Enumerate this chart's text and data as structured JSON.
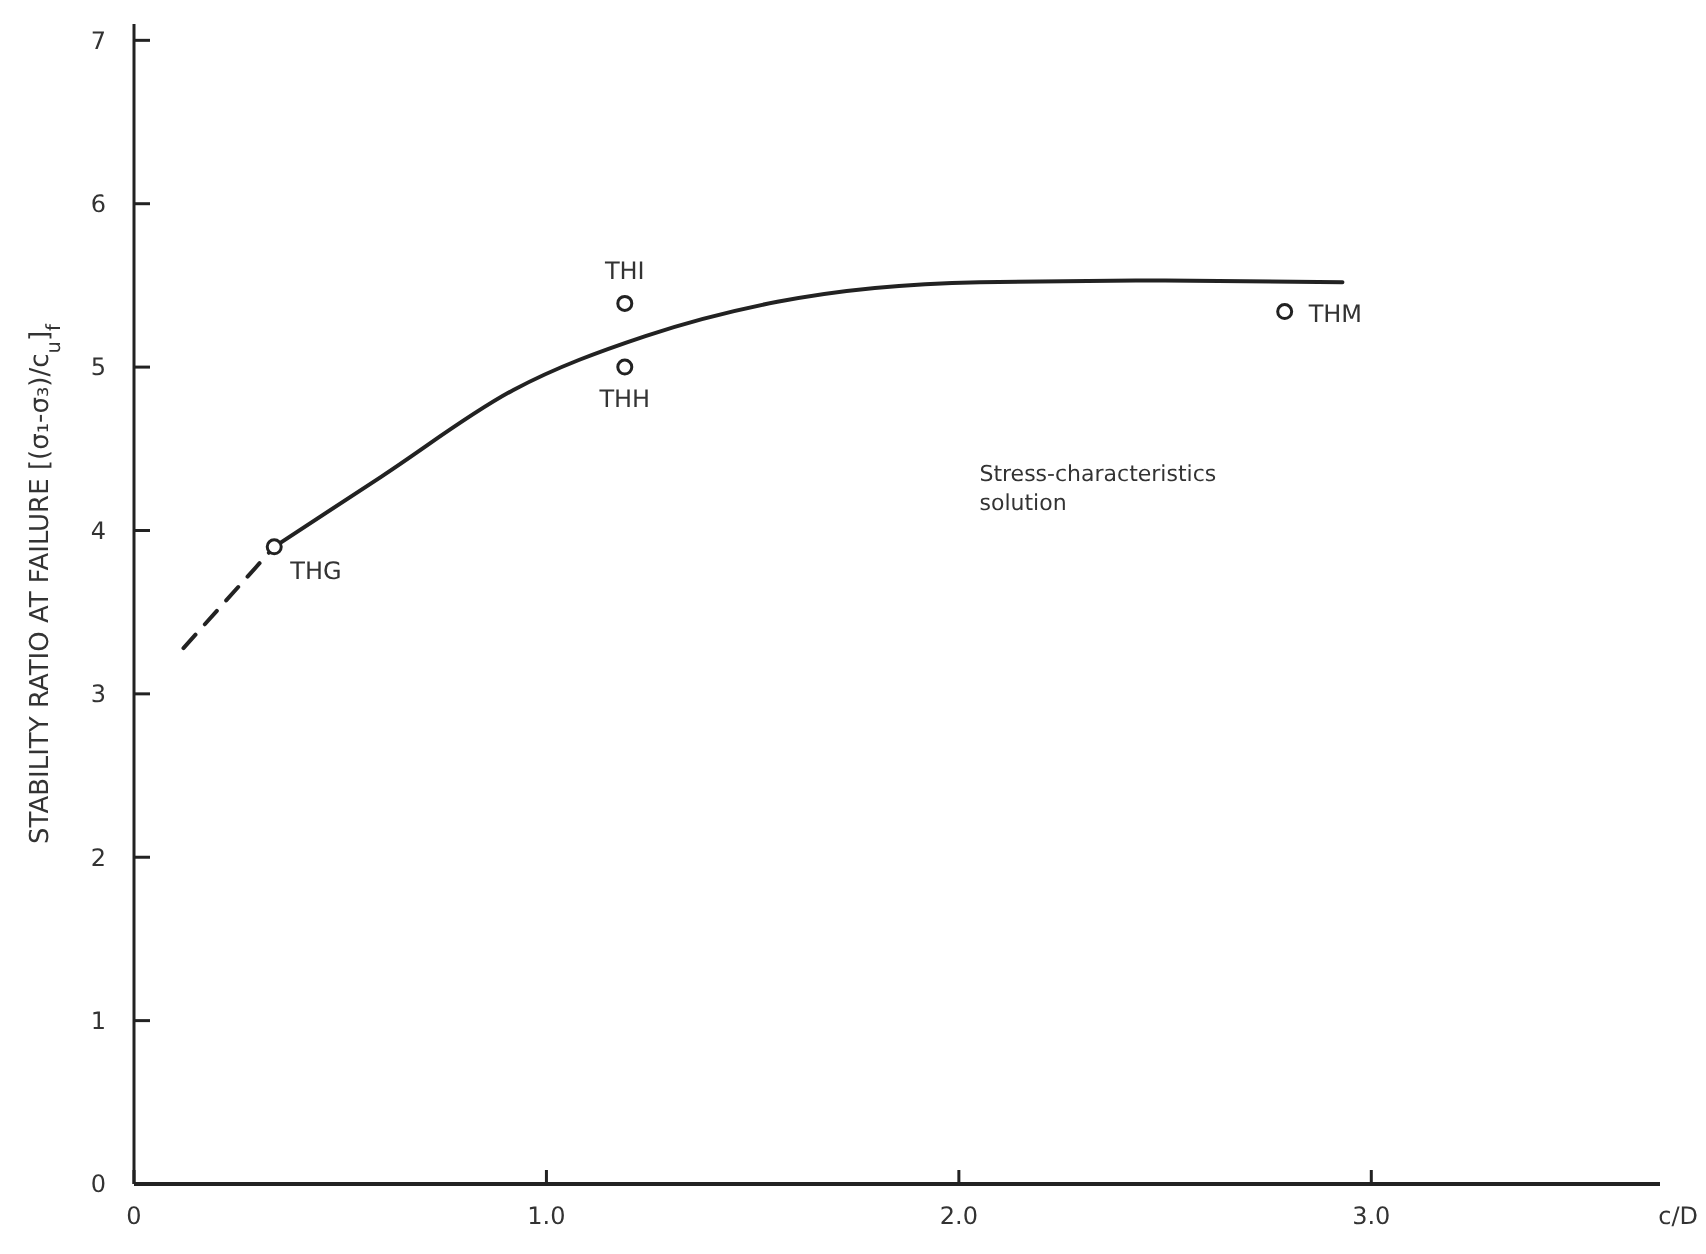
{
  "chart_data": {
    "type": "line",
    "xlabel": "c/D",
    "ylabel": "STABILITY RATIO AT FAILURE [(σ₁-σ₃)/c$_{u}$]$_{f}$",
    "xlim": [
      0,
      3.7
    ],
    "ylim": [
      0,
      7.1
    ],
    "xticks": [
      0,
      {
        "value": 1,
        "label": "1.0"
      },
      {
        "value": 2,
        "label": "2.0"
      },
      {
        "value": 3,
        "label": "3.0"
      }
    ],
    "yticks": [
      0,
      1,
      2,
      3,
      4,
      5,
      6,
      7
    ],
    "grid": false,
    "series": [
      {
        "line_style": "dashed",
        "color": "#222222",
        "x": [
          0.12,
          0.34
        ],
        "values": [
          3.28,
          3.9
        ]
      },
      {
        "line_style": "solid",
        "color": "#222222",
        "x": [
          0.34,
          0.6,
          0.92,
          1.24,
          1.56,
          2.05,
          2.5,
          2.93
        ],
        "values": [
          3.9,
          4.33,
          4.86,
          5.19,
          5.4,
          5.52,
          5.53,
          5.52
        ]
      },
      {
        "type": "scatter",
        "marker": "circle",
        "color": "#222222",
        "x": [
          0.34,
          1.19,
          1.19,
          2.79
        ],
        "values": [
          3.9,
          5.39,
          5.0,
          5.34
        ]
      }
    ],
    "annotations": [
      {
        "text": "THG",
        "x": 0.34,
        "y": 3.9
      },
      {
        "text": "THI",
        "x": 1.19,
        "y": 5.39
      },
      {
        "text": "THH",
        "x": 1.19,
        "y": 5.0
      },
      {
        "text": "THM",
        "x": 2.79,
        "y": 5.34
      },
      "Stress-characteristics solution"
    ]
  }
}
